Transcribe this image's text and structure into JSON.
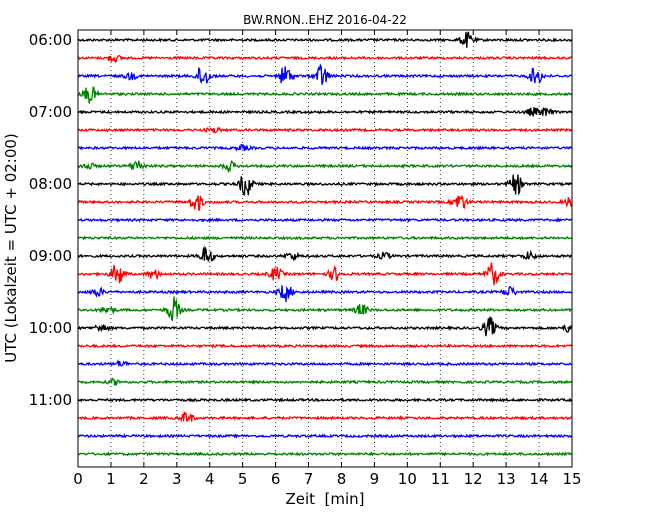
{
  "chart_data": {
    "type": "line",
    "title": "BW.RNON..EHZ 2016-04-22",
    "xlabel": "Zeit  [min]",
    "ylabel": "UTC (Lokalzeit = UTC + 02:00)",
    "xlim": [
      0,
      15
    ],
    "x_ticks": [
      "0",
      "1",
      "2",
      "3",
      "4",
      "5",
      "6",
      "7",
      "8",
      "9",
      "10",
      "11",
      "12",
      "13",
      "14",
      "15"
    ],
    "y_tick_labels": [
      "06:00",
      "07:00",
      "08:00",
      "09:00",
      "10:00",
      "11:00"
    ],
    "grid": true,
    "row_colors": [
      "#000000",
      "#ff0000",
      "#0000ff",
      "#008000"
    ],
    "traces": [
      {
        "start": "06:00",
        "events": [
          [
            11.8,
            0.6
          ]
        ]
      },
      {
        "start": "06:15",
        "events": [
          [
            1.1,
            0.25
          ]
        ]
      },
      {
        "start": "06:30",
        "events": [
          [
            1.6,
            0.25
          ],
          [
            3.8,
            0.9
          ],
          [
            6.3,
            0.8
          ],
          [
            7.4,
            0.9
          ],
          [
            13.9,
            0.7
          ]
        ]
      },
      {
        "start": "06:45",
        "events": [
          [
            0.35,
            0.7
          ]
        ]
      },
      {
        "start": "07:00",
        "events": [
          [
            13.8,
            0.3
          ],
          [
            14.2,
            0.3
          ]
        ]
      },
      {
        "start": "07:15",
        "events": [
          [
            4.1,
            0.2
          ]
        ]
      },
      {
        "start": "07:30",
        "events": [
          [
            5.0,
            0.2
          ]
        ]
      },
      {
        "start": "07:45",
        "events": [
          [
            0.3,
            0.25
          ],
          [
            1.8,
            0.45
          ],
          [
            4.6,
            0.35
          ]
        ]
      },
      {
        "start": "08:00",
        "events": [
          [
            5.1,
            1.0
          ],
          [
            13.3,
            0.8
          ]
        ]
      },
      {
        "start": "08:15",
        "events": [
          [
            3.6,
            0.7
          ],
          [
            11.6,
            0.7
          ],
          [
            15.0,
            0.5
          ]
        ]
      },
      {
        "start": "08:30",
        "events": []
      },
      {
        "start": "08:45",
        "events": []
      },
      {
        "start": "09:00",
        "events": [
          [
            3.9,
            0.75
          ],
          [
            6.5,
            0.3
          ],
          [
            9.3,
            0.25
          ],
          [
            13.7,
            0.3
          ]
        ]
      },
      {
        "start": "09:15",
        "events": [
          [
            1.2,
            0.9
          ],
          [
            2.3,
            0.35
          ],
          [
            6.0,
            0.5
          ],
          [
            7.8,
            0.5
          ],
          [
            12.6,
            0.9
          ]
        ]
      },
      {
        "start": "09:30",
        "events": [
          [
            0.6,
            0.3
          ],
          [
            6.3,
            0.7
          ],
          [
            13.1,
            0.4
          ]
        ]
      },
      {
        "start": "09:45",
        "events": [
          [
            0.9,
            0.3
          ],
          [
            2.9,
            1.0
          ],
          [
            8.6,
            0.45
          ]
        ]
      },
      {
        "start": "10:00",
        "events": [
          [
            0.7,
            0.3
          ],
          [
            12.5,
            0.8
          ],
          [
            14.9,
            0.3
          ]
        ]
      },
      {
        "start": "10:15",
        "events": []
      },
      {
        "start": "10:30",
        "events": [
          [
            1.3,
            0.2
          ]
        ]
      },
      {
        "start": "10:45",
        "events": [
          [
            1.1,
            0.2
          ]
        ]
      },
      {
        "start": "11:00",
        "events": []
      },
      {
        "start": "11:15",
        "events": [
          [
            3.3,
            0.45
          ]
        ]
      },
      {
        "start": "11:30",
        "events": []
      },
      {
        "start": "11:45",
        "events": []
      }
    ]
  }
}
